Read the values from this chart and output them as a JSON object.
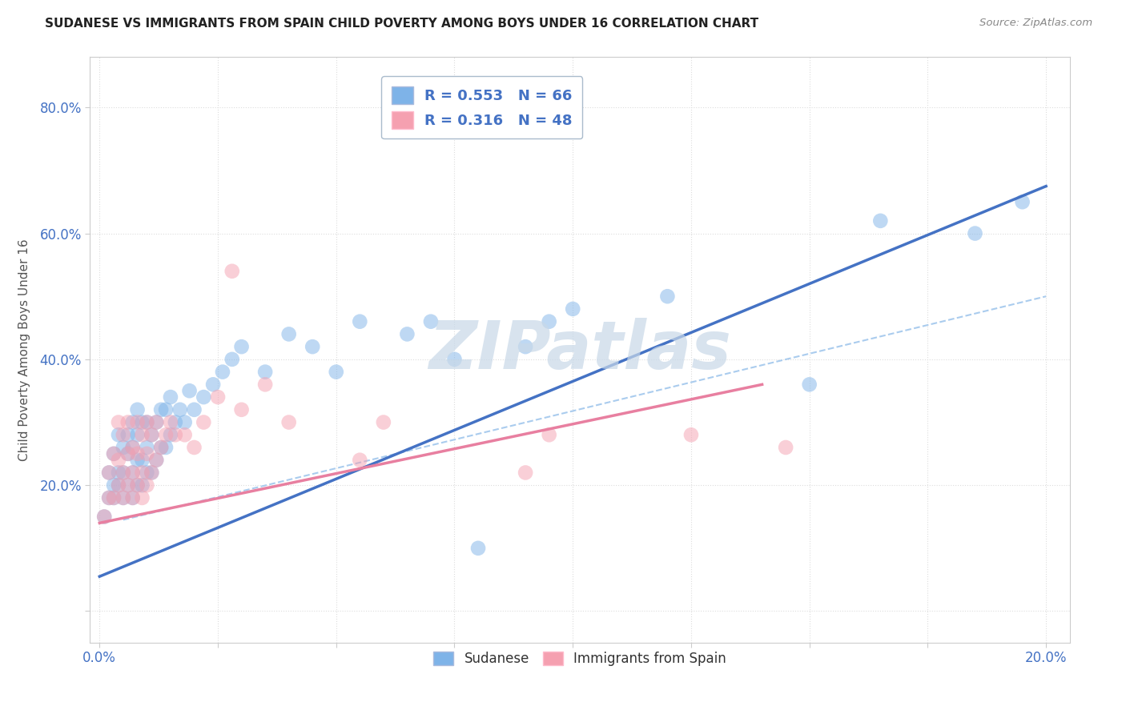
{
  "title": "SUDANESE VS IMMIGRANTS FROM SPAIN CHILD POVERTY AMONG BOYS UNDER 16 CORRELATION CHART",
  "source_text": "Source: ZipAtlas.com",
  "ylabel": "Child Poverty Among Boys Under 16",
  "xlim": [
    -0.002,
    0.205
  ],
  "ylim": [
    -0.05,
    0.88
  ],
  "xticks": [
    0.0,
    0.025,
    0.05,
    0.075,
    0.1,
    0.125,
    0.15,
    0.175,
    0.2
  ],
  "xticklabels": [
    "0.0%",
    "",
    "",
    "",
    "",
    "",
    "",
    "",
    "20.0%"
  ],
  "ytick_positions": [
    0.0,
    0.2,
    0.4,
    0.6,
    0.8
  ],
  "yticklabels": [
    "",
    "20.0%",
    "40.0%",
    "60.0%",
    "80.0%"
  ],
  "blue_color": "#7EB3E8",
  "pink_color": "#F5A0B0",
  "blue_line_color": "#4472C4",
  "pink_line_color": "#E87FA0",
  "dashed_line_color": "#AACCEE",
  "legend_R1": "R = 0.553",
  "legend_N1": "N = 66",
  "legend_R2": "R = 0.316",
  "legend_N2": "N = 48",
  "watermark": "ZIPatlas",
  "watermark_color": "#C8D8E8",
  "blue_scatter_x": [
    0.001,
    0.002,
    0.002,
    0.003,
    0.003,
    0.003,
    0.004,
    0.004,
    0.004,
    0.005,
    0.005,
    0.005,
    0.006,
    0.006,
    0.006,
    0.007,
    0.007,
    0.007,
    0.007,
    0.008,
    0.008,
    0.008,
    0.008,
    0.009,
    0.009,
    0.009,
    0.01,
    0.01,
    0.01,
    0.011,
    0.011,
    0.012,
    0.012,
    0.013,
    0.013,
    0.014,
    0.014,
    0.015,
    0.015,
    0.016,
    0.017,
    0.018,
    0.019,
    0.02,
    0.022,
    0.024,
    0.026,
    0.028,
    0.03,
    0.035,
    0.04,
    0.045,
    0.05,
    0.055,
    0.065,
    0.07,
    0.075,
    0.08,
    0.09,
    0.095,
    0.1,
    0.12,
    0.15,
    0.165,
    0.185,
    0.195
  ],
  "blue_scatter_y": [
    0.15,
    0.18,
    0.22,
    0.18,
    0.2,
    0.25,
    0.2,
    0.22,
    0.28,
    0.18,
    0.22,
    0.26,
    0.2,
    0.25,
    0.28,
    0.18,
    0.22,
    0.26,
    0.3,
    0.2,
    0.24,
    0.28,
    0.32,
    0.2,
    0.24,
    0.3,
    0.22,
    0.26,
    0.3,
    0.22,
    0.28,
    0.24,
    0.3,
    0.26,
    0.32,
    0.26,
    0.32,
    0.28,
    0.34,
    0.3,
    0.32,
    0.3,
    0.35,
    0.32,
    0.34,
    0.36,
    0.38,
    0.4,
    0.42,
    0.38,
    0.44,
    0.42,
    0.38,
    0.46,
    0.44,
    0.46,
    0.4,
    0.1,
    0.42,
    0.46,
    0.48,
    0.5,
    0.36,
    0.62,
    0.6,
    0.65
  ],
  "pink_scatter_x": [
    0.001,
    0.002,
    0.002,
    0.003,
    0.003,
    0.004,
    0.004,
    0.004,
    0.005,
    0.005,
    0.005,
    0.006,
    0.006,
    0.006,
    0.007,
    0.007,
    0.007,
    0.008,
    0.008,
    0.008,
    0.009,
    0.009,
    0.009,
    0.01,
    0.01,
    0.01,
    0.011,
    0.011,
    0.012,
    0.012,
    0.013,
    0.014,
    0.015,
    0.016,
    0.018,
    0.02,
    0.022,
    0.025,
    0.028,
    0.03,
    0.035,
    0.04,
    0.055,
    0.06,
    0.09,
    0.095,
    0.125,
    0.145
  ],
  "pink_scatter_y": [
    0.15,
    0.18,
    0.22,
    0.18,
    0.25,
    0.2,
    0.24,
    0.3,
    0.18,
    0.22,
    0.28,
    0.2,
    0.25,
    0.3,
    0.18,
    0.22,
    0.26,
    0.2,
    0.25,
    0.3,
    0.18,
    0.22,
    0.28,
    0.2,
    0.25,
    0.3,
    0.22,
    0.28,
    0.24,
    0.3,
    0.26,
    0.28,
    0.3,
    0.28,
    0.28,
    0.26,
    0.3,
    0.34,
    0.54,
    0.32,
    0.36,
    0.3,
    0.24,
    0.3,
    0.22,
    0.28,
    0.28,
    0.26
  ],
  "blue_line_x": [
    0.0,
    0.2
  ],
  "blue_line_y": [
    0.055,
    0.675
  ],
  "pink_line_x": [
    0.0,
    0.14
  ],
  "pink_line_y": [
    0.14,
    0.36
  ],
  "dashed_line_x": [
    0.005,
    0.2
  ],
  "dashed_line_y": [
    0.145,
    0.5
  ],
  "background_color": "#FFFFFF",
  "grid_color": "#DDDDDD"
}
